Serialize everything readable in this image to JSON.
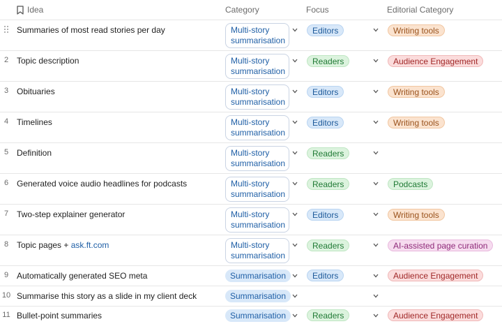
{
  "headers": {
    "idea": "Idea",
    "category": "Category",
    "focus": "Focus",
    "editorial": "Editorial Category"
  },
  "colors": {
    "editors": "#d8e8f9",
    "readers": "#dcf3de",
    "writing_tools": "#fbe3cf",
    "audience_engagement": "#fbdcdc",
    "podcasts": "#dcf3de",
    "ai_assisted": "#f6dcef",
    "category_text": "#1f5fa6"
  },
  "rows": [
    {
      "num": "",
      "idea": "Summaries of most read stories per day",
      "category_line1": "Multi-story",
      "category_line2": "summarisation",
      "focus": "Editors",
      "editorial": "Writing tools"
    },
    {
      "num": "2",
      "idea": "Topic description",
      "category_line1": "Multi-story",
      "category_line2": "summarisation",
      "focus": "Readers",
      "editorial": "Audience Engagement"
    },
    {
      "num": "3",
      "idea": "Obituaries",
      "category_line1": "Multi-story",
      "category_line2": "summarisation",
      "focus": "Editors",
      "editorial": "Writing tools"
    },
    {
      "num": "4",
      "idea": "Timelines",
      "category_line1": "Multi-story",
      "category_line2": "summarisation",
      "focus": "Editors",
      "editorial": "Writing tools"
    },
    {
      "num": "5",
      "idea": "Definition",
      "category_line1": "Multi-story",
      "category_line2": "summarisation",
      "focus": "Readers",
      "editorial": ""
    },
    {
      "num": "6",
      "idea": "Generated voice audio headlines for podcasts",
      "category_line1": "Multi-story",
      "category_line2": "summarisation",
      "focus": "Readers",
      "editorial": "Podcasts"
    },
    {
      "num": "7",
      "idea": "Two-step explainer generator",
      "category_line1": "Multi-story",
      "category_line2": "summarisation",
      "focus": "Editors",
      "editorial": "Writing tools"
    },
    {
      "num": "8",
      "idea": "Topic pages + ",
      "idea_link": "ask.ft.com",
      "category_line1": "Multi-story",
      "category_line2": "summarisation",
      "focus": "Readers",
      "editorial": "AI-assisted page curation"
    },
    {
      "num": "9",
      "idea": "Automatically generated SEO meta",
      "category": "Summarisation",
      "focus": "Editors",
      "editorial": "Audience Engagement"
    },
    {
      "num": "10",
      "idea": "Summarise this story as a slide in my client deck",
      "category": "Summarisation",
      "focus": "",
      "editorial": ""
    },
    {
      "num": "11",
      "idea": "Bullet-point summaries",
      "category": "Summarisation",
      "focus": "Readers",
      "editorial": "Audience Engagement"
    }
  ]
}
